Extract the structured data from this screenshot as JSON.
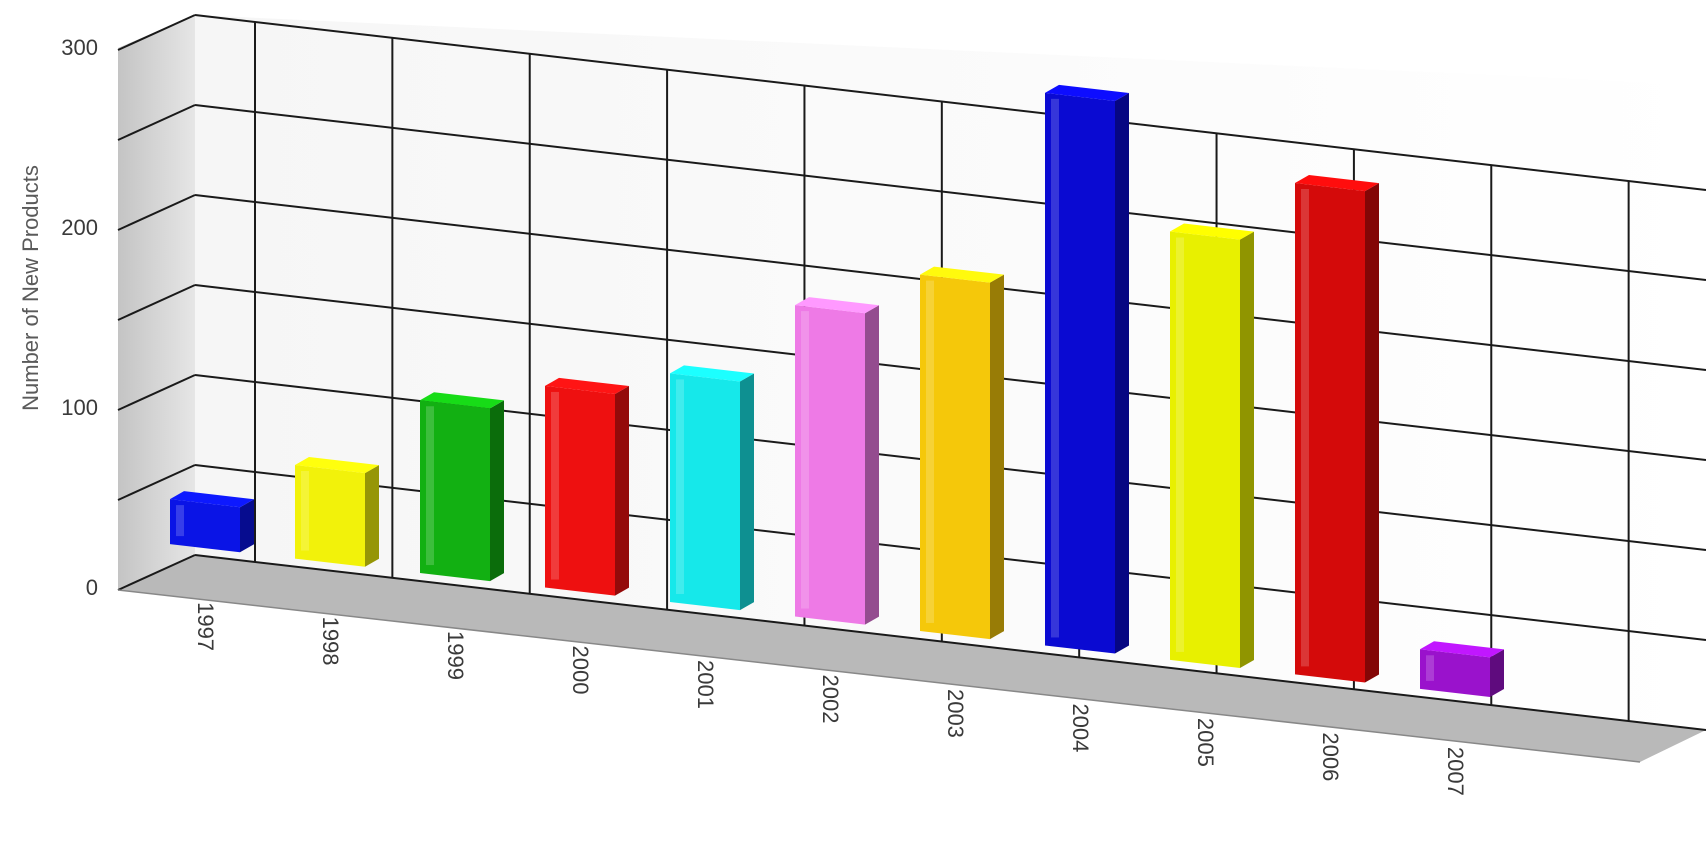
{
  "chart_data": {
    "type": "bar",
    "title": "",
    "xlabel": "",
    "ylabel": "Number of New Products",
    "categories": [
      "1997",
      "1998",
      "1999",
      "2000",
      "2001",
      "2002",
      "2003",
      "2004",
      "2005",
      "2006",
      "2007"
    ],
    "values": [
      25,
      52,
      96,
      112,
      127,
      173,
      198,
      307,
      238,
      273,
      22
    ],
    "bar_colors": [
      "#0a14e6",
      "#f2f20a",
      "#12b012",
      "#ee1010",
      "#16e8ea",
      "#ee7ae6",
      "#f5c80a",
      "#0a0ad2",
      "#e8f000",
      "#d40a0a",
      "#9a12cc"
    ],
    "ylim": [
      0,
      300
    ],
    "ytick_labels": [
      "0",
      "100",
      "200",
      "300"
    ],
    "ytick_values": [
      0,
      100,
      200,
      300
    ],
    "grid": true,
    "legend": "none",
    "style": "3d"
  }
}
